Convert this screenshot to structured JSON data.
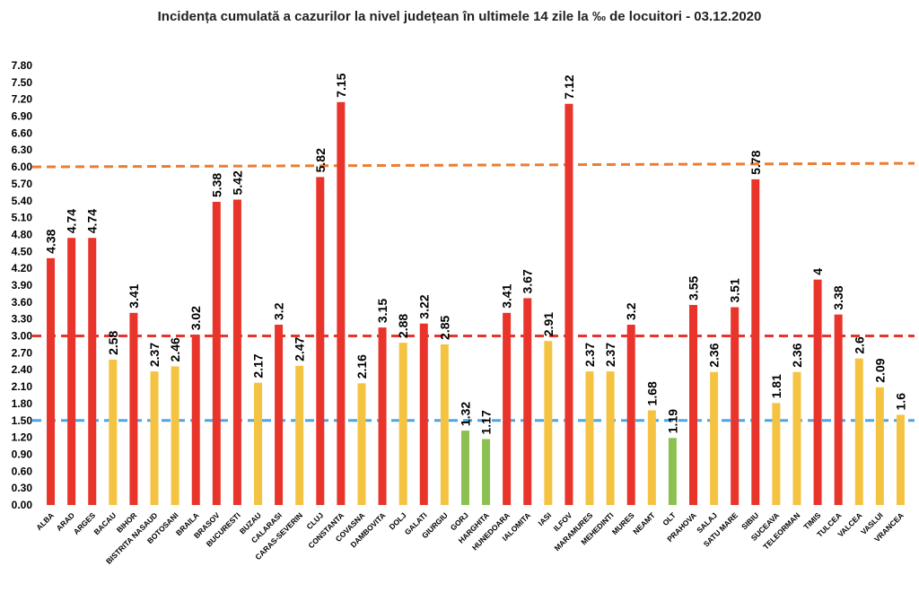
{
  "chart_data": {
    "type": "bar",
    "title": "Incidența cumulată a cazurilor la nivel județean în ultimele 14 zile la ‰ de locuitori - 03.12.2020",
    "xlabel": "",
    "ylabel": "",
    "ylim": [
      0,
      7.8
    ],
    "yticks": [
      "0.00",
      "0.30",
      "0.60",
      "0.90",
      "1.20",
      "1.50",
      "1.80",
      "2.10",
      "2.40",
      "2.70",
      "3.00",
      "3.30",
      "3.60",
      "3.90",
      "4.20",
      "4.50",
      "4.80",
      "5.10",
      "5.40",
      "5.70",
      "6.00",
      "6.30",
      "6.60",
      "6.90",
      "7.20",
      "7.50",
      "7.80"
    ],
    "grid": false,
    "legend": "none",
    "categories": [
      "ALBA",
      "ARAD",
      "ARGES",
      "BACAU",
      "BIHOR",
      "BISTRITA NASAUD",
      "BOTOSANI",
      "BRAILA",
      "BRASOV",
      "BUCURESTI",
      "BUZAU",
      "CALARASI",
      "CARAS-SEVERIN",
      "CLUJ",
      "CONSTANTA",
      "COVASNA",
      "DAMBOVITA",
      "DOLJ",
      "GALATI",
      "GIURGIU",
      "GORJ",
      "HARGHITA",
      "HUNEDOARA",
      "IALOMITA",
      "IASI",
      "ILFOV",
      "MARAMURES",
      "MEHEDINTI",
      "MURES",
      "NEAMT",
      "OLT",
      "PRAHOVA",
      "SALAJ",
      "SATU MARE",
      "SIBIU",
      "SUCEAVA",
      "TELEORMAN",
      "TIMIS",
      "TULCEA",
      "VALCEA",
      "VASLUI",
      "VRANCEA"
    ],
    "values": [
      4.38,
      4.74,
      4.74,
      2.58,
      3.41,
      2.37,
      2.46,
      3.02,
      5.38,
      5.42,
      2.17,
      3.2,
      2.47,
      5.82,
      7.15,
      2.16,
      3.15,
      2.88,
      3.22,
      2.85,
      1.32,
      1.17,
      3.41,
      3.67,
      2.91,
      7.12,
      2.37,
      2.37,
      3.2,
      1.68,
      1.19,
      3.55,
      2.36,
      3.51,
      5.78,
      1.81,
      2.36,
      4,
      3.38,
      2.6,
      2.09,
      1.6
    ],
    "value_labels": [
      "4.38",
      "4.74",
      "4.74",
      "2.58",
      "3.41",
      "2.37",
      "2.46",
      "3.02",
      "5.38",
      "5.42",
      "2.17",
      "3.2",
      "2.47",
      "5.82",
      "7.15",
      "2.16",
      "3.15",
      "2.88",
      "3.22",
      "2.85",
      "1.32",
      "1.17",
      "3.41",
      "3.67",
      "2.91",
      "7.12",
      "2.37",
      "2.37",
      "3.2",
      "1.68",
      "1.19",
      "3.55",
      "2.36",
      "3.51",
      "5.78",
      "1.81",
      "2.36",
      "4",
      "3.38",
      "2.6",
      "2.09",
      "1.6"
    ],
    "colors": {
      "red": "#e8342a",
      "yellow": "#f5c342",
      "green": "#8cc152"
    },
    "thresholds": [
      {
        "value": 6.0,
        "color": "#ed7d31"
      },
      {
        "value": 3.0,
        "color": "#e8342a"
      },
      {
        "value": 1.5,
        "color": "#4da6e8"
      }
    ]
  }
}
